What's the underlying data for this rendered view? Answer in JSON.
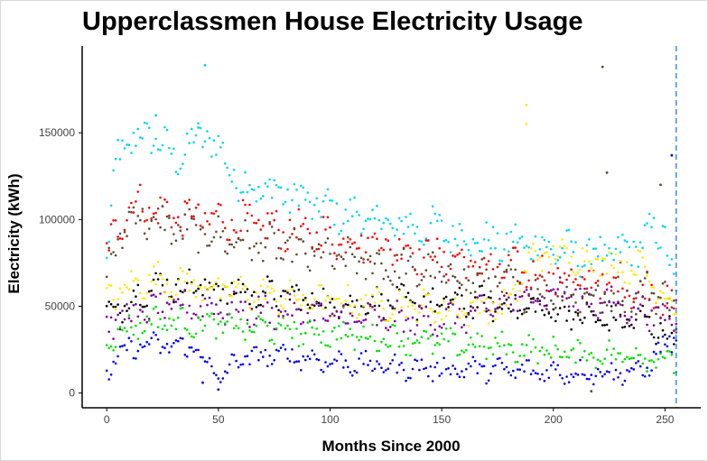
{
  "chart_data": {
    "type": "scatter",
    "title": "Upperclassmen House Electricity Usage",
    "xlabel": "Months Since 2000",
    "ylabel": "Electricity (kWh)",
    "xlim": [
      -11,
      266
    ],
    "ylim": [
      -8500,
      200000
    ],
    "x_ticks": [
      0,
      50,
      100,
      150,
      200,
      250
    ],
    "y_ticks": [
      0,
      50000,
      100000,
      150000
    ],
    "grid": false,
    "legend": "none",
    "reference_line": {
      "x": 255,
      "color": "#1f77ff",
      "style": "dashed"
    },
    "series": [
      {
        "color": "#00d5ef",
        "anchors": [
          [
            0,
            75000
          ],
          [
            5,
            140000
          ],
          [
            20,
            150000
          ],
          [
            30,
            135000
          ],
          [
            45,
            150000
          ],
          [
            60,
            120000
          ],
          [
            80,
            115000
          ],
          [
            100,
            105000
          ],
          [
            130,
            96000
          ],
          [
            150,
            94000
          ],
          [
            170,
            86000
          ],
          [
            190,
            86000
          ],
          [
            210,
            80000
          ],
          [
            230,
            80000
          ],
          [
            250,
            95000
          ],
          [
            255,
            50000
          ]
        ],
        "spread": 9000
      },
      {
        "color": "#ff0000",
        "anchors": [
          [
            0,
            80000
          ],
          [
            10,
            110000
          ],
          [
            30,
            102000
          ],
          [
            50,
            100000
          ],
          [
            70,
            96000
          ],
          [
            90,
            92000
          ],
          [
            110,
            88000
          ],
          [
            130,
            84000
          ],
          [
            150,
            78000
          ],
          [
            170,
            72000
          ],
          [
            190,
            70000
          ],
          [
            210,
            64000
          ],
          [
            230,
            62000
          ],
          [
            250,
            56000
          ],
          [
            255,
            42000
          ]
        ],
        "spread": 9000
      },
      {
        "color": "#5c4a2e",
        "anchors": [
          [
            0,
            70000
          ],
          [
            10,
            102000
          ],
          [
            30,
            95000
          ],
          [
            50,
            90000
          ],
          [
            70,
            85000
          ],
          [
            90,
            80000
          ],
          [
            110,
            76000
          ],
          [
            130,
            72000
          ],
          [
            150,
            68000
          ],
          [
            170,
            64000
          ],
          [
            190,
            60000
          ],
          [
            210,
            56000
          ],
          [
            230,
            54000
          ],
          [
            250,
            60000
          ],
          [
            255,
            38000
          ]
        ],
        "spread": 9000
      },
      {
        "color": "#000000",
        "anchors": [
          [
            0,
            45000
          ],
          [
            20,
            62000
          ],
          [
            40,
            62000
          ],
          [
            60,
            58000
          ],
          [
            80,
            56000
          ],
          [
            100,
            52000
          ],
          [
            120,
            52000
          ],
          [
            140,
            52000
          ],
          [
            160,
            52000
          ],
          [
            180,
            50000
          ],
          [
            200,
            48000
          ],
          [
            220,
            42000
          ],
          [
            240,
            42000
          ],
          [
            255,
            32000
          ]
        ],
        "spread": 7000
      },
      {
        "color": "#ffea00",
        "anchors": [
          [
            0,
            55000
          ],
          [
            20,
            66000
          ],
          [
            40,
            62000
          ],
          [
            60,
            58000
          ],
          [
            80,
            55000
          ],
          [
            100,
            52000
          ],
          [
            120,
            52000
          ],
          [
            140,
            50000
          ],
          [
            160,
            48000
          ],
          [
            180,
            50000
          ],
          [
            190,
            78000
          ],
          [
            200,
            80000
          ],
          [
            220,
            76000
          ],
          [
            240,
            72000
          ],
          [
            255,
            48000
          ]
        ],
        "spread": 7000
      },
      {
        "color": "#7a0099",
        "anchors": [
          [
            0,
            40000
          ],
          [
            20,
            48000
          ],
          [
            40,
            50000
          ],
          [
            60,
            48000
          ],
          [
            80,
            46000
          ],
          [
            100,
            44000
          ],
          [
            120,
            42000
          ],
          [
            140,
            42000
          ],
          [
            160,
            44000
          ],
          [
            180,
            52000
          ],
          [
            200,
            58000
          ],
          [
            220,
            52000
          ],
          [
            240,
            48000
          ],
          [
            255,
            40000
          ]
        ],
        "spread": 7000
      },
      {
        "color": "#00e000",
        "anchors": [
          [
            0,
            32000
          ],
          [
            20,
            42000
          ],
          [
            40,
            40000
          ],
          [
            60,
            38000
          ],
          [
            80,
            36000
          ],
          [
            100,
            34000
          ],
          [
            120,
            32000
          ],
          [
            140,
            30000
          ],
          [
            160,
            28000
          ],
          [
            180,
            26000
          ],
          [
            200,
            24000
          ],
          [
            220,
            22000
          ],
          [
            240,
            22000
          ],
          [
            255,
            18000
          ]
        ],
        "spread": 6000
      },
      {
        "color": "#0000ee",
        "anchors": [
          [
            0,
            12000
          ],
          [
            10,
            26000
          ],
          [
            20,
            28000
          ],
          [
            40,
            26000
          ],
          [
            50,
            8000
          ],
          [
            60,
            20000
          ],
          [
            80,
            22000
          ],
          [
            100,
            18000
          ],
          [
            120,
            16000
          ],
          [
            140,
            14000
          ],
          [
            160,
            14000
          ],
          [
            180,
            13000
          ],
          [
            200,
            12000
          ],
          [
            220,
            12000
          ],
          [
            240,
            12000
          ],
          [
            250,
            28000
          ],
          [
            255,
            32000
          ]
        ],
        "spread": 5000
      }
    ],
    "highlighted_points": [
      {
        "x": 44,
        "y": 189000,
        "color": "#00d5ef"
      },
      {
        "x": 222,
        "y": 188000,
        "color": "#5c4a2e"
      },
      {
        "x": 188,
        "y": 166000,
        "color": "#ffea00"
      },
      {
        "x": 188,
        "y": 155000,
        "color": "#ffea00"
      },
      {
        "x": 22,
        "y": 160000,
        "color": "#00d5ef"
      },
      {
        "x": 41,
        "y": 153000,
        "color": "#00d5ef"
      },
      {
        "x": 253,
        "y": 137000,
        "color": "#0000ee"
      },
      {
        "x": 224,
        "y": 127000,
        "color": "#5c4a2e"
      },
      {
        "x": 248,
        "y": 120000,
        "color": "#5c4a2e"
      },
      {
        "x": 43,
        "y": 6000,
        "color": "#0000ee"
      },
      {
        "x": 50,
        "y": 2000,
        "color": "#0000ee"
      },
      {
        "x": 217,
        "y": 1000,
        "color": "#5c4a2e"
      }
    ]
  }
}
